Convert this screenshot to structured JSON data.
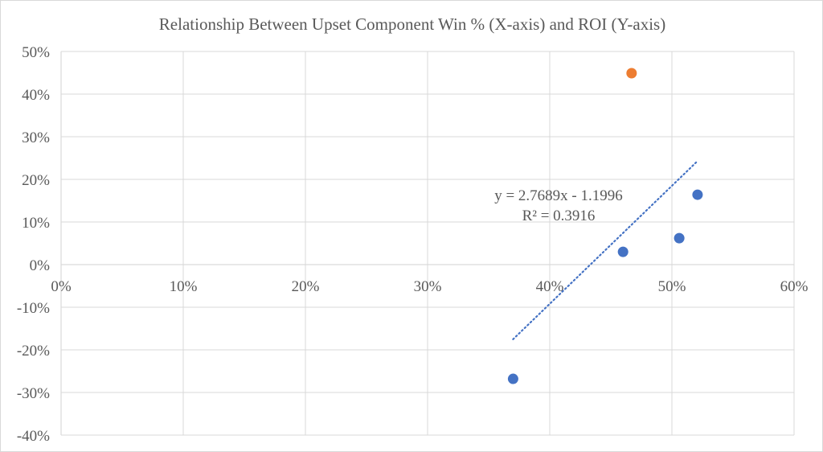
{
  "chart_data": {
    "type": "scatter",
    "title": "Relationship Between Upset Component Win % (X-axis) and ROI (Y-axis)",
    "xlabel": "",
    "ylabel": "",
    "xlim": [
      0,
      0.6
    ],
    "ylim": [
      -0.4,
      0.5
    ],
    "x_ticks": [
      0,
      0.1,
      0.2,
      0.3,
      0.4,
      0.5,
      0.6
    ],
    "x_tick_labels": [
      "0%",
      "10%",
      "20%",
      "30%",
      "40%",
      "50%",
      "60%"
    ],
    "y_ticks": [
      0.5,
      0.4,
      0.3,
      0.2,
      0.1,
      0,
      -0.1,
      -0.2,
      -0.3,
      -0.4
    ],
    "y_tick_labels": [
      "50%",
      "40%",
      "30%",
      "20%",
      "10%",
      "0%",
      "-10%",
      "-20%",
      "-30%",
      "-40%"
    ],
    "grid": true,
    "series": [
      {
        "color": "#4472c4",
        "points": [
          {
            "x": 0.37,
            "y": -0.268
          },
          {
            "x": 0.46,
            "y": 0.03
          },
          {
            "x": 0.506,
            "y": 0.062
          },
          {
            "x": 0.521,
            "y": 0.164
          }
        ]
      },
      {
        "color": "#ed7d31",
        "points": [
          {
            "x": 0.467,
            "y": 0.449
          }
        ]
      }
    ],
    "trendline": {
      "color": "#4472c4",
      "style": "dotted",
      "slope": 2.7689,
      "intercept": -1.1996,
      "x_range": [
        0.37,
        0.521
      ],
      "equation_label": "y = 2.7689x - 1.1996",
      "r2_label": "R² = 0.3916"
    }
  }
}
